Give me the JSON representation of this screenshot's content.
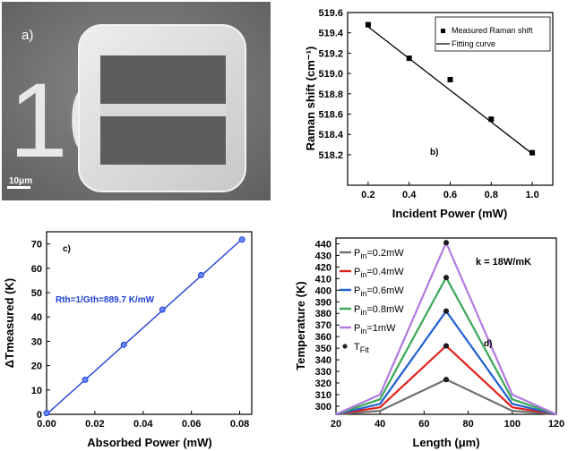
{
  "panel_a": {
    "label": "a)",
    "scale_bar": "10μm",
    "digits_text": "10"
  },
  "chart_data": [
    {
      "id": "b",
      "type": "scatter",
      "panel_label": "b)",
      "xlabel": "Incident Power (mW)",
      "ylabel": "Raman shift (cm⁻¹)",
      "xlim": [
        0.1,
        1.1
      ],
      "ylim": [
        517.9,
        519.6
      ],
      "xticks": [
        0.2,
        0.4,
        0.6,
        0.8,
        1.0
      ],
      "xtick_labels": [
        "0.2",
        "0.4",
        "0.6",
        "0.8",
        "1.0"
      ],
      "yticks": [
        518.2,
        518.4,
        518.6,
        518.8,
        519.0,
        519.2,
        519.4,
        519.6
      ],
      "ytick_labels": [
        "518.2",
        "518.4",
        "518.6",
        "518.8",
        "519.0",
        "519.2",
        "519.4",
        "519.6"
      ],
      "legend_position": "top-right",
      "series": [
        {
          "name": "Measured Raman shift",
          "kind": "points",
          "color": "#000000",
          "x": [
            0.2,
            0.4,
            0.6,
            0.8,
            1.0
          ],
          "y": [
            519.48,
            519.15,
            518.94,
            518.55,
            518.22
          ]
        },
        {
          "name": "Fitting curve",
          "kind": "line",
          "color": "#000000",
          "x": [
            0.2,
            1.0
          ],
          "y": [
            519.46,
            518.21
          ]
        }
      ]
    },
    {
      "id": "c",
      "type": "scatter",
      "panel_label": "c)",
      "annotation": "Rth=1/Gth=889.7 K/mW",
      "annotation_color": "#1f3fd6",
      "xlabel": "Absorbed Power (mW)",
      "ylabel": "ΔTmeasured (K)",
      "xlim": [
        0,
        0.085
      ],
      "ylim": [
        0,
        75
      ],
      "xticks": [
        0.0,
        0.02,
        0.04,
        0.06,
        0.08
      ],
      "xtick_labels": [
        "0.00",
        "0.02",
        "0.04",
        "0.06",
        "0.08"
      ],
      "yticks": [
        0,
        10,
        20,
        30,
        40,
        50,
        60,
        70
      ],
      "ytick_labels": [
        "0",
        "10",
        "20",
        "30",
        "40",
        "50",
        "60",
        "70"
      ],
      "series": [
        {
          "kind": "points",
          "color": "#1f3fd6",
          "x": [
            0.0,
            0.016,
            0.032,
            0.048,
            0.064,
            0.081
          ],
          "y": [
            0.5,
            14.2,
            28.6,
            43.0,
            57.2,
            71.8
          ]
        },
        {
          "kind": "line",
          "color": "#1f3fd6",
          "x": [
            0.0,
            0.081
          ],
          "y": [
            0.0,
            72.0
          ]
        }
      ]
    },
    {
      "id": "d",
      "type": "line",
      "panel_label": "d)",
      "annotation": "k = 18W/mK",
      "xlabel": "Length (μm)",
      "ylabel": "Temperature (K)",
      "xlim": [
        20,
        120
      ],
      "ylim": [
        293,
        445
      ],
      "xticks": [
        20,
        40,
        60,
        80,
        100,
        120
      ],
      "xtick_labels": [
        "20",
        "40",
        "60",
        "80",
        "100",
        "120"
      ],
      "yticks": [
        300,
        310,
        320,
        330,
        340,
        350,
        360,
        370,
        380,
        390,
        400,
        410,
        420,
        430,
        440
      ],
      "ytick_labels": [
        "300",
        "310",
        "320",
        "330",
        "340",
        "350",
        "360",
        "370",
        "380",
        "390",
        "400",
        "410",
        "420",
        "430",
        "440"
      ],
      "legend_position": "top-left",
      "x": [
        20,
        40,
        70,
        100,
        120
      ],
      "series": [
        {
          "name": "Pin=0.2mW",
          "name_main": "P",
          "name_sub": "in",
          "name_tail": "=0.2mW",
          "color": "#707070",
          "y": [
            293,
            296,
            323,
            296,
            293
          ]
        },
        {
          "name": "Pin=0.4mW",
          "name_main": "P",
          "name_sub": "in",
          "name_tail": "=0.4mW",
          "color": "#e0201b",
          "y": [
            293,
            299,
            352,
            299,
            293
          ]
        },
        {
          "name": "Pin=0.6mW",
          "name_main": "P",
          "name_sub": "in",
          "name_tail": "=0.6mW",
          "color": "#2060d0",
          "y": [
            293,
            302,
            382,
            302,
            293
          ]
        },
        {
          "name": "Pin=0.8mW",
          "name_main": "P",
          "name_sub": "in",
          "name_tail": "=0.8mW",
          "color": "#3aa856",
          "y": [
            293,
            306,
            411,
            306,
            293
          ]
        },
        {
          "name": "Pin=1mW",
          "name_main": "P",
          "name_sub": "in",
          "name_tail": "=1mW",
          "color": "#b07ae0",
          "y": [
            293,
            310,
            441,
            310,
            293
          ]
        }
      ],
      "fit_points": {
        "name": "TFit",
        "name_main": "T",
        "name_sub": "Fit",
        "x": [
          70,
          70,
          70,
          70,
          70
        ],
        "y": [
          323,
          352,
          382,
          411,
          441
        ]
      }
    }
  ]
}
